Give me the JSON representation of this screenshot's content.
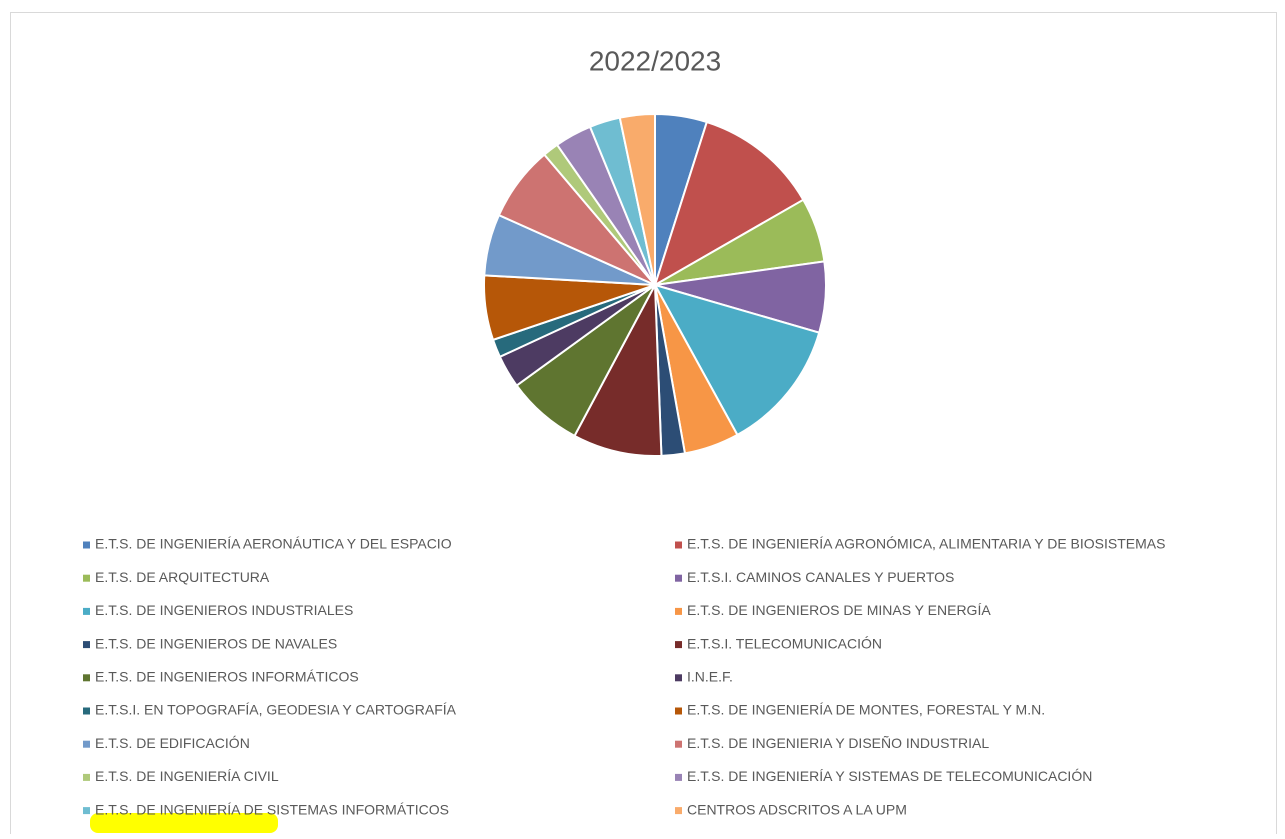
{
  "chart_data": {
    "type": "pie",
    "title": "2022/2023",
    "categories": [
      "E.T.S. DE INGENIERÍA AERONÁUTICA Y DEL ESPACIO",
      "E.T.S. DE INGENIERÍA AGRONÓMICA, ALIMENTARIA Y DE BIOSISTEMAS",
      "E.T.S. DE ARQUITECTURA",
      "E.T.S.I. CAMINOS CANALES Y PUERTOS",
      "E.T.S. DE INGENIEROS INDUSTRIALES",
      "E.T.S. DE INGENIEROS DE MINAS Y ENERGÍA",
      "E.T.S. DE INGENIEROS DE NAVALES",
      "E.T.S.I. TELECOMUNICACIÓN",
      "E.T.S. DE INGENIEROS INFORMÁTICOS",
      "I.N.E.F.",
      "E.T.S.I. EN TOPOGRAFÍA, GEODESIA Y CARTOGRAFÍA",
      "E.T.S. DE INGENIERÍA DE MONTES, FORESTAL Y M.N.",
      "E.T.S. DE EDIFICACIÓN",
      "E.T.S. DE INGENIERIA Y DISEÑO INDUSTRIAL",
      "E.T.S. DE INGENIERÍA CIVIL",
      "E.T.S. DE INGENIERÍA Y SISTEMAS DE TELECOMUNICACIÓN",
      "E.T.S. DE INGENIERÍA DE SISTEMAS INFORMÁTICOS",
      "CENTROS ADSCRITOS A LA UPM"
    ],
    "values": [
      4.9,
      11.8,
      6.1,
      6.7,
      12.5,
      5.2,
      2.2,
      8.4,
      7.2,
      3.1,
      1.7,
      6.1,
      5.8,
      7.1,
      1.5,
      3.5,
      2.9,
      3.3
    ],
    "colors": [
      "#4f81bd",
      "#c0504d",
      "#9bbb59",
      "#8064a2",
      "#4bacc6",
      "#f79646",
      "#2c4d75",
      "#772c2a",
      "#5f7530",
      "#4d3b62",
      "#276a7c",
      "#b65708",
      "#729aca",
      "#cd7371",
      "#afc97a",
      "#9983b5",
      "#6fbdd1",
      "#f9ab6b"
    ],
    "legend": "bottom"
  }
}
